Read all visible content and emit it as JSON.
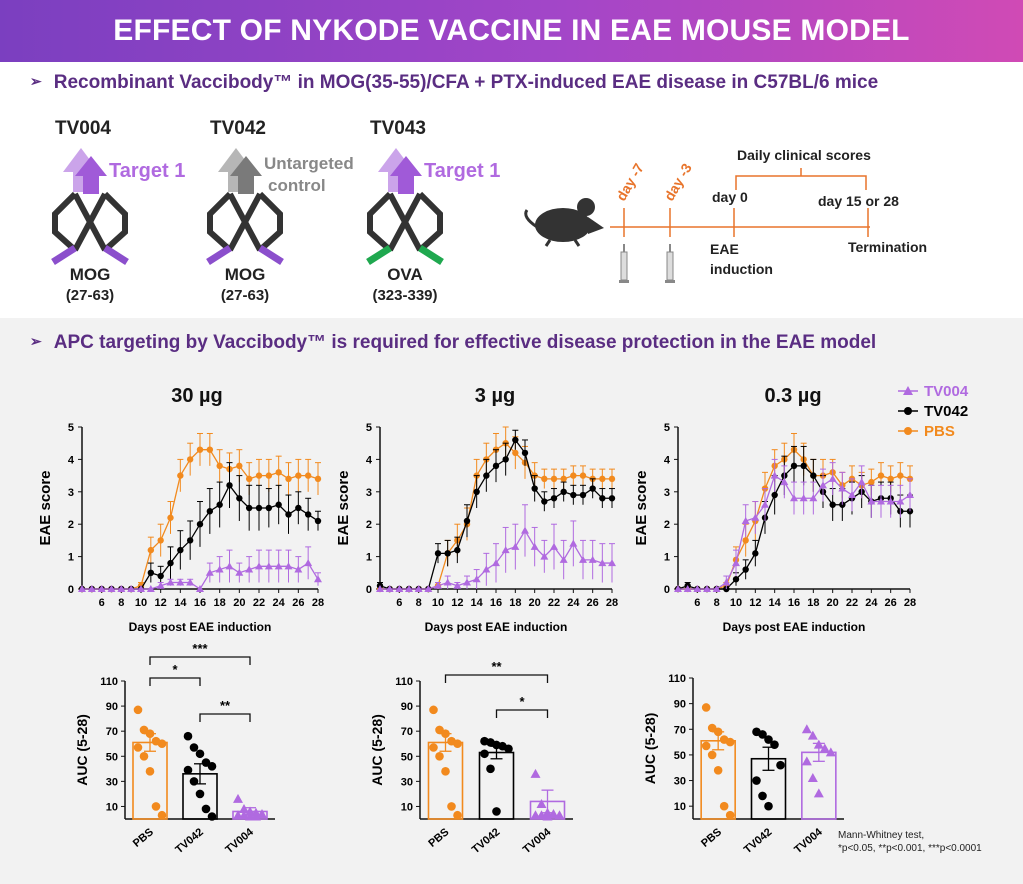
{
  "title": "EFFECT OF NYKODE VACCINE IN EAE MOUSE MODEL",
  "section1_header": "Recombinant Vaccibody™ in MOG(35-55)/CFA + PTX-induced EAE disease in C57BL/6 mice",
  "section2_header": "APC targeting by Vaccibody™ is required for effective disease protection in the EAE model",
  "constructs": [
    {
      "name": "TV004",
      "target": "Target 1",
      "target2": "",
      "antigen": "MOG",
      "range": "(27-63)",
      "color": "#a05ad8",
      "antigen_color": "#8b4fcc"
    },
    {
      "name": "TV042",
      "target": "Untargeted",
      "target2": "control",
      "antigen": "MOG",
      "range": "(27-63)",
      "color": "#7a7a7a",
      "antigen_color": "#8b4fcc"
    },
    {
      "name": "TV043",
      "target": "Target 1",
      "target2": "",
      "antigen": "OVA",
      "range": "(323-339)",
      "color": "#a05ad8",
      "antigen_color": "#1fa84f"
    }
  ],
  "timeline": {
    "day_minus7": "day -7",
    "day_minus3": "day -3",
    "day0": "day 0",
    "day_end": "day 15 or 28",
    "daily": "Daily clinical scores",
    "eae": "EAE",
    "induction": "induction",
    "termination": "Termination"
  },
  "colors": {
    "tv004": "#b06ae0",
    "tv042": "#000000",
    "pbs": "#f28a1e",
    "header": "#5a2d82"
  },
  "legend": [
    {
      "name": "TV004",
      "color": "#b06ae0"
    },
    {
      "name": "TV042",
      "color": "#000000"
    },
    {
      "name": "PBS",
      "color": "#f28a1e"
    }
  ],
  "footnote_line1": "Mann-Whitney test,",
  "footnote_line2": "*p<0.05, **p<0.001, ***p<0.0001",
  "chart_data": [
    {
      "type": "line",
      "title": "30 µg",
      "xlabel": "Days post EAE induction",
      "ylabel": "EAE score",
      "ylim": [
        0,
        5
      ],
      "xlim": [
        4,
        28
      ],
      "x": [
        4,
        5,
        6,
        7,
        8,
        9,
        10,
        11,
        12,
        13,
        14,
        15,
        16,
        17,
        18,
        19,
        20,
        21,
        22,
        23,
        24,
        25,
        26,
        27,
        28
      ],
      "series": [
        {
          "name": "PBS",
          "values": [
            0,
            0,
            0,
            0,
            0,
            0,
            0.1,
            1.2,
            1.5,
            2.2,
            3.5,
            4.0,
            4.3,
            4.3,
            3.8,
            3.7,
            3.8,
            3.4,
            3.5,
            3.5,
            3.6,
            3.4,
            3.5,
            3.5,
            3.4
          ],
          "err": [
            0,
            0,
            0,
            0,
            0,
            0,
            0.1,
            0.4,
            0.5,
            0.5,
            0.5,
            0.5,
            0.5,
            0.5,
            0.5,
            0.5,
            0.5,
            0.5,
            0.5,
            0.5,
            0.5,
            0.5,
            0.5,
            0.5,
            0.5
          ]
        },
        {
          "name": "TV042",
          "values": [
            0,
            0,
            0,
            0,
            0,
            0,
            0,
            0.5,
            0.4,
            0.8,
            1.2,
            1.5,
            2.0,
            2.4,
            2.6,
            3.2,
            2.8,
            2.5,
            2.5,
            2.5,
            2.6,
            2.3,
            2.5,
            2.3,
            2.1
          ],
          "err": [
            0,
            0,
            0,
            0,
            0,
            0,
            0,
            0.3,
            0.3,
            0.5,
            0.6,
            0.6,
            0.7,
            0.7,
            0.7,
            0.7,
            0.7,
            0.7,
            0.7,
            0.6,
            0.6,
            0.6,
            0.5,
            0.5,
            0.3
          ]
        },
        {
          "name": "TV004",
          "values": [
            0,
            0,
            0,
            0,
            0,
            0,
            0,
            0,
            0.1,
            0.2,
            0.2,
            0.2,
            0,
            0.5,
            0.6,
            0.7,
            0.5,
            0.6,
            0.7,
            0.7,
            0.7,
            0.7,
            0.6,
            0.8,
            0.3
          ],
          "err": [
            0,
            0,
            0,
            0,
            0,
            0,
            0,
            0,
            0.1,
            0.1,
            0.1,
            0.1,
            0,
            0.3,
            0.4,
            0.5,
            0.3,
            0.4,
            0.5,
            0.5,
            0.5,
            0.5,
            0.4,
            0.5,
            0.2
          ]
        }
      ]
    },
    {
      "type": "line",
      "title": "3 µg",
      "xlabel": "Days post EAE induction",
      "ylabel": "EAE score",
      "ylim": [
        0,
        5
      ],
      "xlim": [
        4,
        28
      ],
      "x": [
        4,
        5,
        6,
        7,
        8,
        9,
        10,
        11,
        12,
        13,
        14,
        15,
        16,
        17,
        18,
        19,
        20,
        21,
        22,
        23,
        24,
        25,
        26,
        27,
        28
      ],
      "series": [
        {
          "name": "PBS",
          "values": [
            0,
            0,
            0,
            0,
            0,
            0,
            0.1,
            1.1,
            1.5,
            2.0,
            3.5,
            4.0,
            4.3,
            4.5,
            4.2,
            3.9,
            3.5,
            3.4,
            3.4,
            3.4,
            3.5,
            3.5,
            3.4,
            3.4,
            3.4
          ],
          "err": [
            0,
            0,
            0,
            0,
            0,
            0,
            0.1,
            0.4,
            0.5,
            0.5,
            0.5,
            0.5,
            0.5,
            0.5,
            0.5,
            0.5,
            0.4,
            0.3,
            0.3,
            0.3,
            0.3,
            0.3,
            0.3,
            0.3,
            0.3
          ]
        },
        {
          "name": "TV042",
          "values": [
            0.1,
            0,
            0,
            0,
            0,
            0,
            1.1,
            1.1,
            1.2,
            2.1,
            3.0,
            3.5,
            3.8,
            4.0,
            4.6,
            4.2,
            3.1,
            2.7,
            2.8,
            3.0,
            2.9,
            2.9,
            3.1,
            2.8,
            2.8
          ],
          "err": [
            0.1,
            0,
            0,
            0,
            0,
            0,
            0.3,
            0.4,
            0.4,
            0.5,
            0.5,
            0.5,
            0.5,
            0.5,
            0.3,
            0.4,
            0.4,
            0.3,
            0.3,
            0.3,
            0.3,
            0.3,
            0.3,
            0.3,
            0.3
          ]
        },
        {
          "name": "TV004",
          "values": [
            0,
            0,
            0,
            0,
            0,
            0,
            0.1,
            0.2,
            0.1,
            0.2,
            0.3,
            0.6,
            0.8,
            1.2,
            1.3,
            1.8,
            1.3,
            1.0,
            1.3,
            0.9,
            1.4,
            0.9,
            0.9,
            0.8,
            0.8
          ],
          "err": [
            0,
            0,
            0,
            0,
            0,
            0,
            0.1,
            0.2,
            0.1,
            0.2,
            0.3,
            0.5,
            0.6,
            0.7,
            0.7,
            0.8,
            0.6,
            0.5,
            0.7,
            0.6,
            0.7,
            0.6,
            0.6,
            0.6,
            0.6
          ]
        }
      ]
    },
    {
      "type": "line",
      "title": "0.3 µg",
      "xlabel": "Days post EAE induction",
      "ylabel": "EAE score",
      "ylim": [
        0,
        5
      ],
      "xlim": [
        4,
        28
      ],
      "x": [
        4,
        5,
        6,
        7,
        8,
        9,
        10,
        11,
        12,
        13,
        14,
        15,
        16,
        17,
        18,
        19,
        20,
        21,
        22,
        23,
        24,
        25,
        26,
        27,
        28
      ],
      "series": [
        {
          "name": "PBS",
          "values": [
            0,
            0,
            0,
            0,
            0,
            0.1,
            0.9,
            1.5,
            2.1,
            3.1,
            3.8,
            4.0,
            4.3,
            4.0,
            3.5,
            3.5,
            3.6,
            3.2,
            3.4,
            3.2,
            3.3,
            3.5,
            3.4,
            3.5,
            3.4
          ],
          "err": [
            0,
            0,
            0,
            0,
            0,
            0.1,
            0.4,
            0.5,
            0.6,
            0.5,
            0.5,
            0.5,
            0.5,
            0.5,
            0.5,
            0.5,
            0.4,
            0.4,
            0.4,
            0.4,
            0.4,
            0.4,
            0.4,
            0.4,
            0.4
          ]
        },
        {
          "name": "TV042",
          "values": [
            0,
            0.1,
            0,
            0,
            0,
            0,
            0.3,
            0.6,
            1.1,
            2.2,
            2.9,
            3.5,
            3.8,
            3.8,
            3.5,
            3.0,
            2.6,
            2.6,
            2.8,
            3.0,
            2.7,
            2.8,
            2.8,
            2.4,
            2.4
          ],
          "err": [
            0,
            0.1,
            0,
            0,
            0,
            0,
            0.2,
            0.3,
            0.4,
            0.5,
            0.6,
            0.6,
            0.6,
            0.6,
            0.5,
            0.5,
            0.5,
            0.5,
            0.5,
            0.5,
            0.5,
            0.5,
            0.5,
            0.5,
            0.5
          ]
        },
        {
          "name": "TV004",
          "values": [
            0,
            0,
            0,
            0,
            0,
            0.2,
            0.8,
            2.1,
            2.2,
            2.6,
            3.5,
            3.3,
            2.8,
            2.8,
            2.8,
            3.2,
            3.4,
            3.1,
            2.9,
            3.3,
            2.7,
            2.7,
            2.7,
            2.7,
            2.9
          ],
          "err": [
            0,
            0,
            0,
            0,
            0,
            0.2,
            0.4,
            0.5,
            0.5,
            0.5,
            0.5,
            0.5,
            0.5,
            0.5,
            0.5,
            0.5,
            0.5,
            0.5,
            0.5,
            0.5,
            0.5,
            0.5,
            0.5,
            0.5,
            0.5
          ]
        }
      ]
    },
    {
      "type": "bar",
      "ylabel": "AUC (5-28)",
      "ylim": [
        0,
        110
      ],
      "categories": [
        "PBS",
        "TV042",
        "TV004"
      ],
      "values": [
        61,
        36,
        6
      ],
      "sem": [
        7,
        8,
        3
      ],
      "points": [
        [
          87,
          71,
          68,
          62,
          60,
          57,
          50,
          38,
          10,
          3
        ],
        [
          66,
          57,
          52,
          45,
          42,
          39,
          30,
          20,
          8,
          2
        ],
        [
          16,
          8,
          6,
          5,
          4,
          3,
          3,
          2,
          2
        ]
      ],
      "significance": [
        {
          "pair": [
            "PBS",
            "TV042"
          ],
          "label": "*"
        },
        {
          "pair": [
            "PBS",
            "TV004"
          ],
          "label": "***"
        },
        {
          "pair": [
            "TV042",
            "TV004"
          ],
          "label": "**"
        }
      ]
    },
    {
      "type": "bar",
      "ylabel": "AUC (5-28)",
      "ylim": [
        0,
        110
      ],
      "categories": [
        "PBS",
        "TV042",
        "TV004"
      ],
      "values": [
        61,
        53,
        14
      ],
      "sem": [
        7,
        5,
        9
      ],
      "points": [
        [
          87,
          71,
          68,
          62,
          60,
          57,
          50,
          38,
          10,
          3
        ],
        [
          62,
          61,
          59,
          58,
          56,
          52,
          40,
          6
        ],
        [
          36,
          12,
          5,
          4,
          3,
          3,
          3,
          2
        ]
      ],
      "significance": [
        {
          "pair": [
            "PBS",
            "TV004"
          ],
          "label": "**"
        },
        {
          "pair": [
            "TV042",
            "TV004"
          ],
          "label": "*"
        }
      ]
    },
    {
      "type": "bar",
      "ylabel": "AUC (5-28)",
      "ylim": [
        0,
        110
      ],
      "categories": [
        "PBS",
        "TV042",
        "TV004"
      ],
      "values": [
        61,
        47,
        52
      ],
      "sem": [
        7,
        9,
        7
      ],
      "points": [
        [
          87,
          71,
          68,
          62,
          60,
          57,
          50,
          38,
          10,
          3
        ],
        [
          68,
          66,
          62,
          58,
          42,
          30,
          18,
          10
        ],
        [
          70,
          65,
          58,
          55,
          52,
          45,
          32,
          20
        ]
      ],
      "significance": []
    }
  ]
}
